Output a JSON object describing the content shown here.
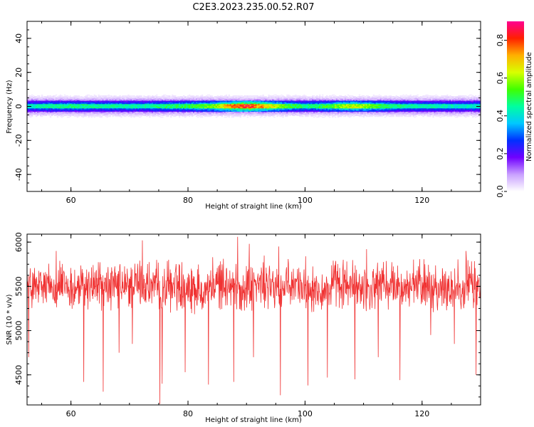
{
  "figure": {
    "title": "C2E3.2023.235.00.52.R07"
  },
  "chart_data": [
    {
      "type": "heatmap",
      "title": "",
      "xlabel": "Height of straight line (km)",
      "ylabel": "Frequency (Hz)",
      "xlim": [
        52.5,
        130
      ],
      "ylim": [
        -50,
        50
      ],
      "x_ticks": [
        60,
        80,
        100,
        120
      ],
      "y_ticks": [
        -40,
        -20,
        0,
        20,
        40
      ],
      "x_tick_labels": [
        "60",
        "80",
        "100",
        "120"
      ],
      "y_tick_labels": [
        "-40",
        "-20",
        "0",
        "20",
        "40"
      ],
      "signal_band_center_hz": 0,
      "signal_band_halfwidth_hz": 3,
      "peak_amplitude_profile": [
        {
          "x": 52.5,
          "amp": 0.45
        },
        {
          "x": 56,
          "amp": 0.5
        },
        {
          "x": 60,
          "amp": 0.52
        },
        {
          "x": 64,
          "amp": 0.5
        },
        {
          "x": 68,
          "amp": 0.5
        },
        {
          "x": 72,
          "amp": 0.48
        },
        {
          "x": 76,
          "amp": 0.52
        },
        {
          "x": 80,
          "amp": 0.55
        },
        {
          "x": 84,
          "amp": 0.62
        },
        {
          "x": 87,
          "amp": 0.78
        },
        {
          "x": 90,
          "amp": 0.9
        },
        {
          "x": 93,
          "amp": 0.78
        },
        {
          "x": 96,
          "amp": 0.62
        },
        {
          "x": 100,
          "amp": 0.5
        },
        {
          "x": 104,
          "amp": 0.58
        },
        {
          "x": 108,
          "amp": 0.7
        },
        {
          "x": 112,
          "amp": 0.6
        },
        {
          "x": 116,
          "amp": 0.5
        },
        {
          "x": 120,
          "amp": 0.48
        },
        {
          "x": 124,
          "amp": 0.47
        },
        {
          "x": 130,
          "amp": 0.45
        }
      ],
      "colorbar": {
        "label": "Normalized spectral amplitude",
        "range": [
          0,
          0.9
        ],
        "ticks": [
          0.0,
          0.2,
          0.4,
          0.6,
          0.8
        ],
        "tick_labels": [
          "0.0",
          "0.2",
          "0.4",
          "0.6",
          "0.8"
        ],
        "colors": [
          "#ffffff",
          "#c9a0ff",
          "#7000ff",
          "#0030ff",
          "#00c8ff",
          "#00ffa0",
          "#40ff00",
          "#d8ff00",
          "#ffb000",
          "#ff2000",
          "#ff0090"
        ]
      }
    },
    {
      "type": "line",
      "title": "",
      "xlabel": "Height of straight line (km)",
      "ylabel": "SNR (10 * v/v)",
      "xlim": [
        52.5,
        130
      ],
      "ylim": [
        4160,
        6090
      ],
      "x_ticks": [
        60,
        80,
        100,
        120
      ],
      "y_ticks": [
        4500,
        5000,
        5500,
        6000
      ],
      "x_tick_labels": [
        "60",
        "80",
        "100",
        "120"
      ],
      "y_tick_labels": [
        "4500",
        "5000",
        "5500",
        "6000"
      ],
      "series": [
        {
          "color": "#f03232",
          "mean": 5500,
          "typical_range": [
            5150,
            5850
          ],
          "dips": [
            {
              "x": 52.8,
              "y": 4700
            },
            {
              "x": 62.2,
              "y": 4420
            },
            {
              "x": 65.5,
              "y": 4310
            },
            {
              "x": 68.2,
              "y": 4750
            },
            {
              "x": 70.5,
              "y": 4850
            },
            {
              "x": 75.2,
              "y": 4170
            },
            {
              "x": 75.6,
              "y": 4400
            },
            {
              "x": 79.5,
              "y": 4530
            },
            {
              "x": 83.5,
              "y": 4390
            },
            {
              "x": 87.8,
              "y": 4420
            },
            {
              "x": 91.2,
              "y": 4700
            },
            {
              "x": 95.8,
              "y": 4270
            },
            {
              "x": 100.5,
              "y": 4380
            },
            {
              "x": 103.8,
              "y": 4470
            },
            {
              "x": 108.5,
              "y": 4450
            },
            {
              "x": 112.5,
              "y": 4700
            },
            {
              "x": 116.2,
              "y": 4440
            },
            {
              "x": 121.5,
              "y": 4950
            },
            {
              "x": 125.5,
              "y": 4850
            },
            {
              "x": 129.2,
              "y": 4500
            }
          ],
          "peaks": [
            {
              "x": 57.5,
              "y": 5900
            },
            {
              "x": 72.2,
              "y": 6020
            },
            {
              "x": 88.5,
              "y": 6060
            },
            {
              "x": 90.5,
              "y": 5980
            },
            {
              "x": 95.5,
              "y": 5950
            },
            {
              "x": 110.5,
              "y": 5920
            },
            {
              "x": 127.5,
              "y": 5900
            }
          ]
        }
      ]
    }
  ]
}
